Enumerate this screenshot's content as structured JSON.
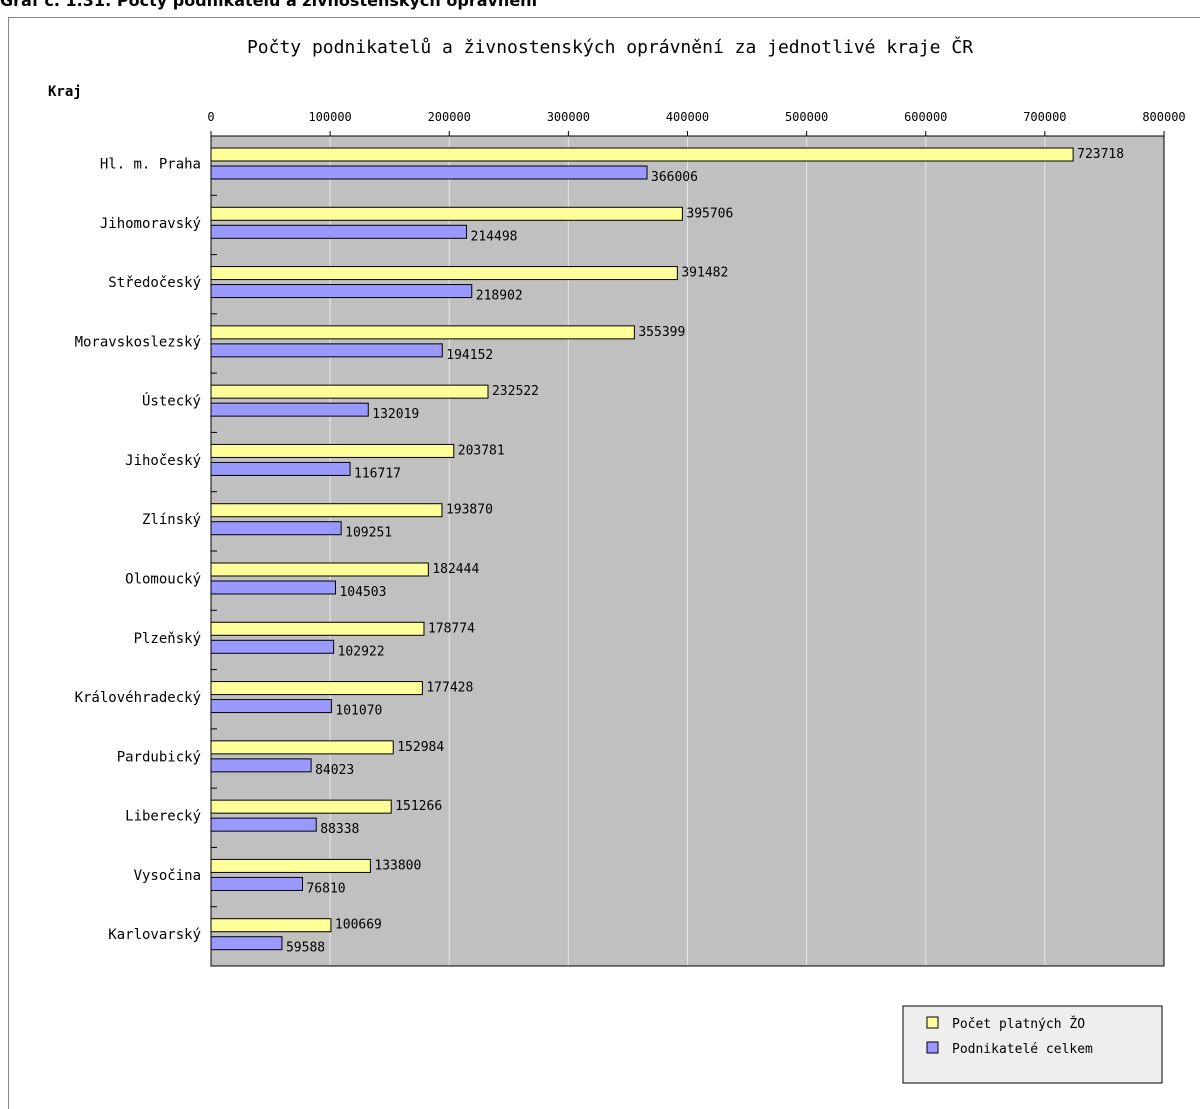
{
  "page": {
    "heading": "Graf č. 1.31: Počty podnikatelů a živnostenských oprávnění"
  },
  "chart_data": {
    "type": "bar",
    "orientation": "horizontal",
    "title": "Počty podnikatelů a živnostenských oprávnění za jednotlivé kraje ČR",
    "ylabel": "Kraj",
    "xlabel": "",
    "xlim": [
      0,
      800000
    ],
    "xticks": [
      "0",
      "100000",
      "200000",
      "300000",
      "400000",
      "500000",
      "600000",
      "700000",
      "800000"
    ],
    "grid": true,
    "legend_position": "bottom-right",
    "categories": [
      "Hl. m. Praha",
      "Jihomoravský",
      "Středočeský",
      "Moravskoslezský",
      "Ústecký",
      "Jihočeský",
      "Zlínský",
      "Olomoucký",
      "Plzeňský",
      "Královéhradecký",
      "Pardubický",
      "Liberecký",
      "Vysočina",
      "Karlovarský"
    ],
    "series": [
      {
        "name": "Počet platných ŽO",
        "color": "#ffff99",
        "values": [
          723718,
          395706,
          391482,
          355399,
          232522,
          203781,
          193870,
          182444,
          178774,
          177428,
          152984,
          151266,
          133800,
          100669
        ]
      },
      {
        "name": "Podnikatelé celkem",
        "color": "#9999ff",
        "values": [
          366006,
          214498,
          218902,
          194152,
          132019,
          116717,
          109251,
          104503,
          102922,
          101070,
          84023,
          88338,
          76810,
          59588
        ]
      }
    ],
    "plot_background": "#c0c0c0",
    "legend_background": "#eeeeee"
  }
}
